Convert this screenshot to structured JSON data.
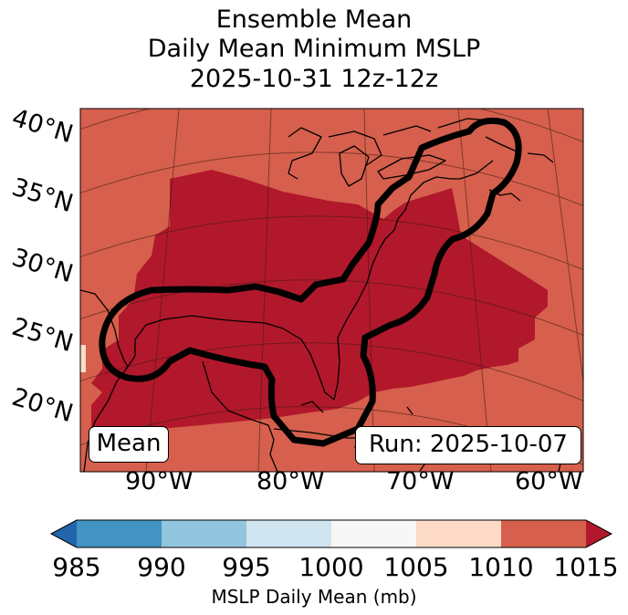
{
  "title": {
    "line1": "Ensemble Mean",
    "line2": "Daily Mean Minimum MSLP",
    "line3": "2025-10-31 12z-12z"
  },
  "latitude_labels": [
    "40°N",
    "35°N",
    "30°N",
    "25°N",
    "20°N"
  ],
  "longitude_labels": [
    "90°W",
    "80°W",
    "70°W",
    "60°W"
  ],
  "boxes": {
    "mean": "Mean",
    "run": "Run: 2025-10-07"
  },
  "colorbar": {
    "label": "MSLP Daily Mean (mb)",
    "ticks": [
      "985",
      "990",
      "995",
      "1000",
      "1005",
      "1010",
      "1015"
    ],
    "colors": [
      "#2166ac",
      "#4393c3",
      "#92c5de",
      "#d1e5f0",
      "#f7f7f7",
      "#fddbc7",
      "#d6604d",
      "#b2182b"
    ],
    "extend": "both"
  },
  "map": {
    "background_fill": "#d6604d",
    "low_region_fill": "#b2182b",
    "contour_color": "#000000"
  }
}
